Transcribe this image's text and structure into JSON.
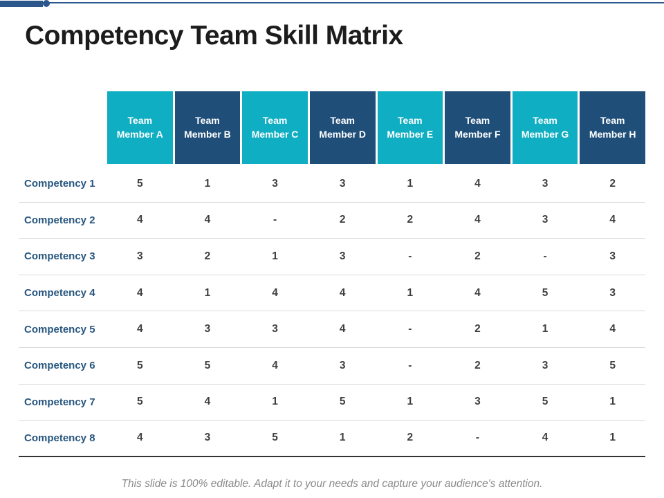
{
  "slide": {
    "title": "Competency Team Skill Matrix",
    "footer_note": "This slide is 100% editable. Adapt it to your needs and capture your audience's attention."
  },
  "table": {
    "columns": [
      "Team Member A",
      "Team Member B",
      "Team Member C",
      "Team Member D",
      "Team Member E",
      "Team Member F",
      "Team Member G",
      "Team Member H"
    ],
    "rows": [
      {
        "label": "Competency 1",
        "values": [
          "5",
          "1",
          "3",
          "3",
          "1",
          "4",
          "3",
          "2"
        ]
      },
      {
        "label": "Competency 2",
        "values": [
          "4",
          "4",
          "-",
          "2",
          "2",
          "4",
          "3",
          "4"
        ]
      },
      {
        "label": "Competency 3",
        "values": [
          "3",
          "2",
          "1",
          "3",
          "-",
          "2",
          "-",
          "3"
        ]
      },
      {
        "label": "Competency 4",
        "values": [
          "4",
          "1",
          "4",
          "4",
          "1",
          "4",
          "5",
          "3"
        ]
      },
      {
        "label": "Competency 5",
        "values": [
          "4",
          "3",
          "3",
          "4",
          "-",
          "2",
          "1",
          "4"
        ]
      },
      {
        "label": "Competency 6",
        "values": [
          "5",
          "5",
          "4",
          "3",
          "-",
          "2",
          "3",
          "5"
        ]
      },
      {
        "label": "Competency 7",
        "values": [
          "5",
          "4",
          "1",
          "5",
          "1",
          "3",
          "5",
          "1"
        ]
      },
      {
        "label": "Competency 8",
        "values": [
          "4",
          "3",
          "5",
          "1",
          "2",
          "-",
          "4",
          "1"
        ]
      }
    ]
  },
  "chart_data": {
    "type": "table",
    "title": "Competency Team Skill Matrix",
    "categories": [
      "Team Member A",
      "Team Member B",
      "Team Member C",
      "Team Member D",
      "Team Member E",
      "Team Member F",
      "Team Member G",
      "Team Member H"
    ],
    "series": [
      {
        "name": "Competency 1",
        "values": [
          5,
          1,
          3,
          3,
          1,
          4,
          3,
          2
        ]
      },
      {
        "name": "Competency 2",
        "values": [
          4,
          4,
          null,
          2,
          2,
          4,
          3,
          4
        ]
      },
      {
        "name": "Competency 3",
        "values": [
          3,
          2,
          1,
          3,
          null,
          2,
          null,
          3
        ]
      },
      {
        "name": "Competency 4",
        "values": [
          4,
          1,
          4,
          4,
          1,
          4,
          5,
          3
        ]
      },
      {
        "name": "Competency 5",
        "values": [
          4,
          3,
          3,
          4,
          null,
          2,
          1,
          4
        ]
      },
      {
        "name": "Competency 6",
        "values": [
          5,
          5,
          4,
          3,
          null,
          2,
          3,
          5
        ]
      },
      {
        "name": "Competency 7",
        "values": [
          5,
          4,
          1,
          5,
          1,
          3,
          5,
          1
        ]
      },
      {
        "name": "Competency 8",
        "values": [
          4,
          3,
          5,
          1,
          2,
          null,
          4,
          1
        ]
      }
    ]
  },
  "colors": {
    "accent_cyan": "#0FAEC2",
    "accent_navy": "#1F4E79",
    "row_label": "#27567F",
    "value_text": "#3F3F3F",
    "divider": "#D9D9D9",
    "table_bottom": "#333333",
    "top_line": "#2B578C",
    "footer_text": "#8A8A8A",
    "title_text": "#1C1C1C"
  }
}
